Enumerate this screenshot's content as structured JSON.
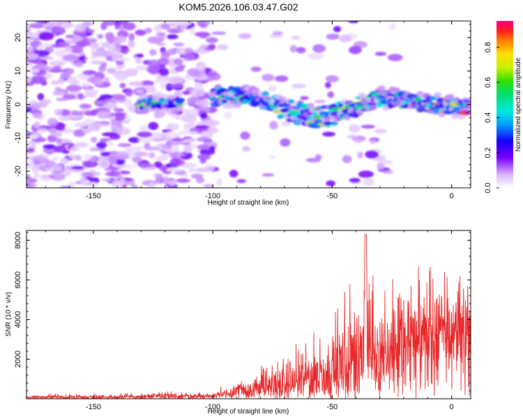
{
  "title": "KOM5.2026.106.03.47.G02",
  "chart_data": [
    {
      "type": "heatmap",
      "name": "spectrogram",
      "xlabel": "Height of straight line (km)",
      "ylabel": "Frequency (Hz)",
      "xlim": [
        -178,
        8
      ],
      "ylim": [
        -25,
        25
      ],
      "xticks": [
        -150,
        -100,
        -50,
        0
      ],
      "yticks": [
        -20,
        -10,
        0,
        10,
        20
      ],
      "colorbar": {
        "label": "Normalized spectral amplitude",
        "range": [
          0,
          0.95
        ],
        "ticks": [
          0.0,
          0.2,
          0.4,
          0.6,
          0.8
        ],
        "tick_labels": [
          "0.0",
          "0.2",
          "0.4",
          "0.6",
          "0.8"
        ]
      },
      "signal_track": {
        "x": [
          -130,
          -122,
          -115,
          -100,
          -92,
          -85,
          -78,
          -70,
          -62,
          -55,
          -48,
          -42,
          -38,
          -30,
          -20,
          -10,
          0,
          8
        ],
        "y": [
          0,
          0.5,
          0,
          2,
          3,
          2.5,
          1,
          -1.5,
          -3,
          -3.5,
          -3,
          -1.5,
          0,
          2,
          1,
          0,
          -0.5,
          -1
        ]
      }
    },
    {
      "type": "line",
      "name": "snr",
      "xlabel": "Height of straight line (km)",
      "ylabel": "SNR (10 * v/v)",
      "xlim": [
        -178,
        8
      ],
      "ylim": [
        0,
        8500
      ],
      "xticks": [
        -150,
        -100,
        -50,
        0
      ],
      "yticks": [
        2000,
        4000,
        6000,
        8000
      ],
      "color": "#e8292a",
      "envelope": {
        "x": [
          -178,
          -130,
          -120,
          -100,
          -95,
          -85,
          -75,
          -65,
          -55,
          -50,
          -45,
          -40,
          -37,
          -32,
          -25,
          -20,
          -15,
          -10,
          -5,
          0,
          5,
          8
        ],
        "base": [
          60,
          80,
          100,
          150,
          250,
          350,
          500,
          700,
          1000,
          1300,
          1600,
          2000,
          2200,
          2400,
          2700,
          3000,
          3300,
          3600,
          3800,
          4000,
          4100,
          4300
        ],
        "peak": [
          250,
          300,
          400,
          300,
          900,
          1400,
          2000,
          2800,
          3800,
          4800,
          5500,
          7000,
          8300,
          6000,
          6500,
          6800,
          7000,
          7100,
          6900,
          7000,
          7100,
          7300
        ]
      }
    }
  ]
}
